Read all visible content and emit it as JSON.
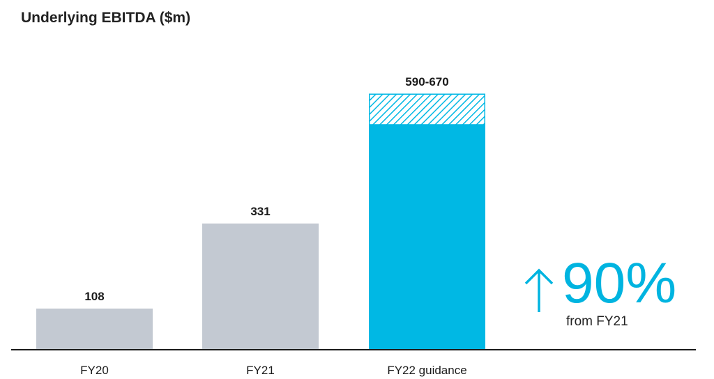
{
  "chart_data": {
    "type": "bar",
    "title": "Underlying EBITDA ($m)",
    "xlabel": "",
    "ylabel": "",
    "categories": [
      "FY20",
      "FY21",
      "FY22 guidance"
    ],
    "bars": [
      {
        "category": "FY20",
        "value": 108,
        "label": "108",
        "color": "#c3c9d2"
      },
      {
        "category": "FY21",
        "value": 331,
        "label": "331",
        "color": "#c3c9d2"
      },
      {
        "category": "FY22 guidance",
        "value": 590,
        "range": [
          590,
          670
        ],
        "label": "590-670",
        "color": "#00b8e4",
        "range_pattern": "hatched"
      }
    ],
    "ylim": [
      0,
      700
    ],
    "grid": false,
    "legend": "none"
  },
  "callout": {
    "value": "90%",
    "subtext": "from FY21",
    "icon": "arrow-up-icon",
    "color": "#00b4e0"
  }
}
